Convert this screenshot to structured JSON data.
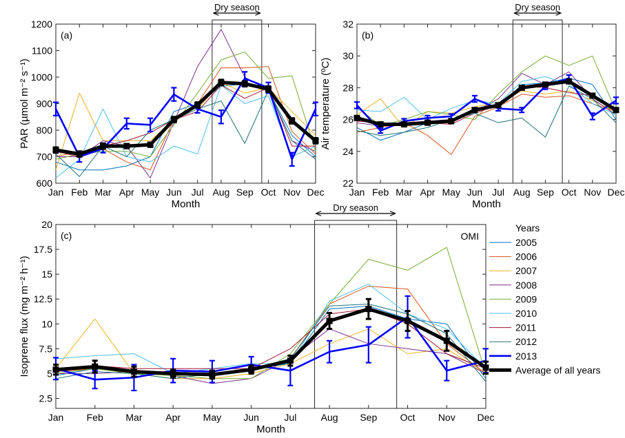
{
  "chart_data": [
    {
      "type": "line",
      "panel_label": "(a)",
      "xlabel": "Month",
      "ylabel": "PAR (µmol m⁻² s⁻¹)",
      "categories": [
        "Jan",
        "Feb",
        "Mar",
        "Apr",
        "May",
        "Jun",
        "Jul",
        "Aug",
        "Sep",
        "Oct",
        "Nov",
        "Dec"
      ],
      "ylim": [
        600,
        1200
      ],
      "yticks": [
        600,
        700,
        800,
        900,
        1000,
        1100,
        1200
      ],
      "annotation": "Dry season",
      "dry_season": [
        "Aug",
        "Oct"
      ],
      "series": [
        {
          "name": "2005",
          "color": "#0072BD",
          "values": [
            680,
            650,
            650,
            665,
            700,
            870,
            900,
            965,
            975,
            950,
            780,
            700
          ]
        },
        {
          "name": "2006",
          "color": "#D95319",
          "values": [
            700,
            720,
            730,
            680,
            650,
            840,
            900,
            1035,
            1035,
            1040,
            795,
            710
          ]
        },
        {
          "name": "2007",
          "color": "#EDB120",
          "values": [
            650,
            940,
            760,
            760,
            760,
            840,
            880,
            980,
            940,
            960,
            870,
            780
          ]
        },
        {
          "name": "2008",
          "color": "#7E2F8E",
          "values": [
            700,
            700,
            760,
            740,
            620,
            830,
            1040,
            1180,
            1000,
            950,
            760,
            720
          ]
        },
        {
          "name": "2009",
          "color": "#77AC30",
          "values": [
            690,
            710,
            720,
            720,
            700,
            820,
            940,
            1065,
            1095,
            995,
            1005,
            720
          ]
        },
        {
          "name": "2010",
          "color": "#4DBEEE",
          "values": [
            620,
            690,
            880,
            700,
            680,
            740,
            710,
            970,
            900,
            930,
            700,
            740
          ]
        },
        {
          "name": "2011",
          "color": "#A2142F",
          "values": [
            720,
            700,
            740,
            760,
            790,
            840,
            870,
            970,
            920,
            960,
            740,
            740
          ]
        },
        {
          "name": "2012",
          "color": "#1F6F7A",
          "values": [
            710,
            625,
            740,
            700,
            800,
            840,
            880,
            910,
            750,
            950,
            760,
            690
          ]
        },
        {
          "name": "2013",
          "color": "#0000FF",
          "values": [
            880,
            700,
            730,
            825,
            820,
            935,
            880,
            850,
            995,
            960,
            690,
            880
          ],
          "err": [
            25,
            20,
            15,
            20,
            25,
            25,
            15,
            25,
            25,
            20,
            25,
            25
          ]
        },
        {
          "name": "Average of all years",
          "color": "#000000",
          "values": [
            725,
            710,
            740,
            740,
            745,
            840,
            895,
            980,
            975,
            955,
            835,
            760
          ],
          "err": [
            10,
            10,
            10,
            8,
            8,
            10,
            10,
            10,
            10,
            10,
            10,
            10
          ]
        }
      ]
    },
    {
      "type": "line",
      "panel_label": "(b)",
      "xlabel": "Month",
      "ylabel": "Air temperature (ºC)",
      "categories": [
        "Jan",
        "Feb",
        "Mar",
        "Apr",
        "May",
        "Jun",
        "Jul",
        "Aug",
        "Sep",
        "Oct",
        "Nov",
        "Dec"
      ],
      "ylim": [
        22,
        32
      ],
      "yticks": [
        22,
        24,
        26,
        28,
        30,
        32
      ],
      "annotation": "Dry season",
      "dry_season": [
        "Aug",
        "Oct"
      ],
      "series": [
        {
          "name": "2005",
          "color": "#0072BD",
          "values": [
            25.5,
            24.7,
            25.2,
            25.8,
            26.0,
            26.6,
            26.8,
            28.2,
            28.3,
            28.6,
            28.2,
            26.0
          ]
        },
        {
          "name": "2006",
          "color": "#D95319",
          "values": [
            25.2,
            25.5,
            25.8,
            25.0,
            23.8,
            26.2,
            26.8,
            27.6,
            27.4,
            27.5,
            27.0,
            26.5
          ]
        },
        {
          "name": "2007",
          "color": "#EDB120",
          "values": [
            26.3,
            27.3,
            25.5,
            26.5,
            26.4,
            26.8,
            27.1,
            27.8,
            27.6,
            27.8,
            27.2,
            26.5
          ]
        },
        {
          "name": "2008",
          "color": "#7E2F8E",
          "values": [
            25.8,
            25.6,
            25.8,
            25.9,
            26.0,
            26.5,
            27.3,
            28.9,
            28.2,
            29.0,
            27.3,
            26.3
          ]
        },
        {
          "name": "2009",
          "color": "#77AC30",
          "values": [
            26.8,
            25.6,
            26.0,
            26.5,
            26.3,
            26.0,
            27.6,
            29.0,
            30.0,
            29.4,
            30.0,
            26.5
          ]
        },
        {
          "name": "2010",
          "color": "#4DBEEE",
          "values": [
            26.6,
            26.5,
            27.4,
            26.0,
            26.7,
            27.2,
            27.0,
            28.4,
            28.7,
            28.2,
            27.0,
            26.3
          ]
        },
        {
          "name": "2011",
          "color": "#A2142F",
          "values": [
            25.9,
            25.8,
            25.6,
            25.8,
            25.7,
            26.4,
            26.9,
            28.1,
            28.0,
            27.7,
            27.5,
            26.7
          ]
        },
        {
          "name": "2012",
          "color": "#1F6F7A",
          "values": [
            25.3,
            25.0,
            25.2,
            25.5,
            26.0,
            26.4,
            25.8,
            26.1,
            24.9,
            28.1,
            27.3,
            25.8
          ]
        },
        {
          "name": "2013",
          "color": "#0000FF",
          "values": [
            26.9,
            25.3,
            25.9,
            26.1,
            26.2,
            27.3,
            26.7,
            26.6,
            28.1,
            28.6,
            26.2,
            27.2
          ],
          "err": [
            0.2,
            0.15,
            0.15,
            0.15,
            0.15,
            0.2,
            0.15,
            0.15,
            0.2,
            0.2,
            0.2,
            0.2
          ]
        },
        {
          "name": "Average of all years",
          "color": "#000000",
          "values": [
            26.1,
            25.7,
            25.7,
            25.8,
            25.9,
            26.6,
            26.9,
            28.0,
            28.2,
            28.4,
            27.5,
            26.6
          ],
          "err": [
            0.1,
            0.1,
            0.1,
            0.1,
            0.1,
            0.1,
            0.1,
            0.1,
            0.1,
            0.1,
            0.1,
            0.1
          ]
        }
      ]
    },
    {
      "type": "line",
      "panel_label": "(c)",
      "corner_label": "OMI",
      "xlabel": "Month",
      "ylabel": "Isoprene flux (mg m⁻² h⁻¹)",
      "categories": [
        "Jan",
        "Feb",
        "Mar",
        "Apr",
        "May",
        "Jun",
        "Jul",
        "Aug",
        "Sep",
        "Oct",
        "Nov",
        "Dec"
      ],
      "ylim": [
        1.5,
        20
      ],
      "yticks": [
        2.5,
        5,
        7.5,
        10,
        12.5,
        15,
        17.5,
        20
      ],
      "annotation": "Dry season",
      "dry_season": [
        "Aug",
        "Oct"
      ],
      "legend": {
        "title": "Years",
        "placement": "right"
      },
      "series": [
        {
          "name": "2005",
          "color": "#0072BD",
          "values": [
            4.8,
            5.5,
            5.0,
            5.0,
            5.0,
            5.5,
            6.0,
            11.5,
            11.8,
            10.5,
            10.0,
            4.5
          ]
        },
        {
          "name": "2006",
          "color": "#D95319",
          "values": [
            5.2,
            5.5,
            5.0,
            5.0,
            5.0,
            5.3,
            6.5,
            12.0,
            13.8,
            13.5,
            8.0,
            5.0
          ]
        },
        {
          "name": "2007",
          "color": "#EDB120",
          "values": [
            5.5,
            10.5,
            5.0,
            4.5,
            4.5,
            5.0,
            6.0,
            8.0,
            9.5,
            7.0,
            7.5,
            5.0
          ]
        },
        {
          "name": "2008",
          "color": "#7E2F8E",
          "values": [
            5.0,
            5.0,
            5.2,
            4.8,
            4.0,
            4.5,
            6.5,
            9.5,
            8.0,
            7.5,
            7.0,
            5.0
          ]
        },
        {
          "name": "2009",
          "color": "#77AC30",
          "values": [
            5.0,
            5.5,
            5.0,
            4.8,
            4.5,
            4.5,
            7.0,
            12.0,
            16.5,
            15.4,
            17.7,
            5.0
          ]
        },
        {
          "name": "2010",
          "color": "#4DBEEE",
          "values": [
            6.5,
            6.8,
            7.0,
            5.0,
            5.5,
            6.0,
            6.0,
            12.3,
            14.0,
            11.0,
            9.5,
            5.5
          ]
        },
        {
          "name": "2011",
          "color": "#A2142F",
          "values": [
            5.5,
            5.8,
            5.5,
            5.5,
            5.5,
            5.5,
            7.5,
            11.0,
            11.5,
            10.0,
            7.0,
            5.5
          ]
        },
        {
          "name": "2012",
          "color": "#1F6F7A",
          "values": [
            4.5,
            5.2,
            5.0,
            4.5,
            5.0,
            5.5,
            6.5,
            11.8,
            12.0,
            11.0,
            9.0,
            4.2
          ]
        },
        {
          "name": "2013",
          "color": "#0000FF",
          "values": [
            5.5,
            4.4,
            4.6,
            5.3,
            5.2,
            5.9,
            5.3,
            7.2,
            7.9,
            10.7,
            5.3,
            6.3
          ],
          "err": [
            1.1,
            0.9,
            1.3,
            1.2,
            1.1,
            0.8,
            1.5,
            1.1,
            1.8,
            2.1,
            1.0,
            1.2
          ]
        },
        {
          "name": "Average of all years",
          "color": "#000000",
          "values": [
            5.4,
            5.7,
            5.2,
            5.0,
            4.9,
            5.4,
            6.3,
            10.3,
            11.5,
            10.3,
            8.3,
            5.6
          ],
          "err": [
            0.5,
            0.6,
            0.5,
            0.4,
            0.4,
            0.4,
            0.5,
            0.8,
            1.0,
            1.0,
            1.0,
            0.6
          ]
        }
      ]
    }
  ]
}
